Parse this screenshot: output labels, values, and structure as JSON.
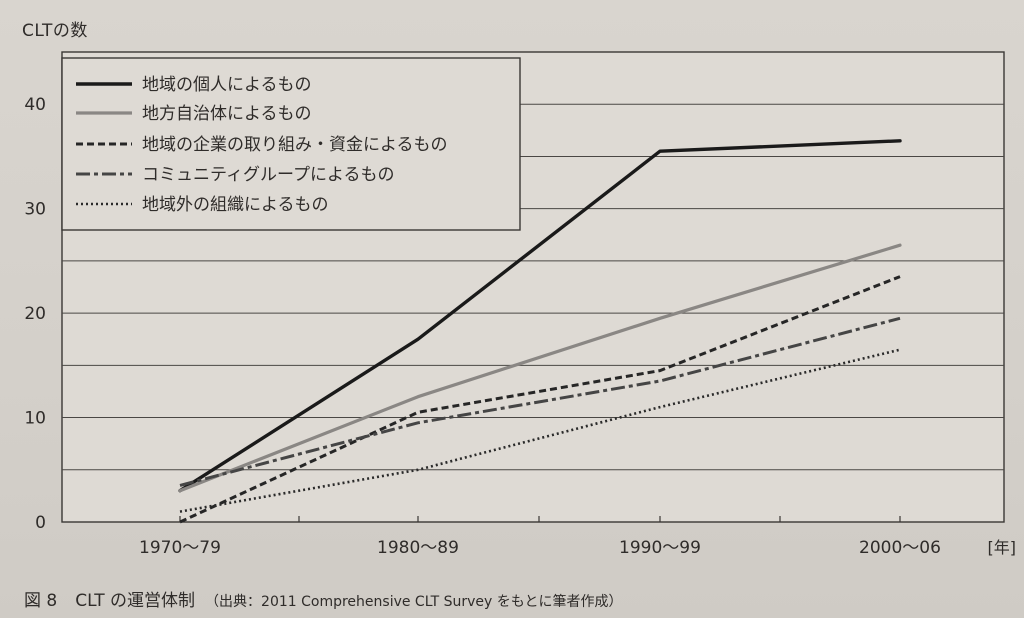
{
  "chart_data": {
    "type": "line",
    "ylabel": "CLTの数",
    "xlabel": "[年]",
    "categories": [
      "1970〜79",
      "1980〜89",
      "1990〜99",
      "2000〜06"
    ],
    "ylim": [
      0,
      45
    ],
    "yticks": [
      0,
      10,
      20,
      30,
      40
    ],
    "grid": "horizontal",
    "legend_placement": "top-left",
    "series": [
      {
        "name": "地域の個人によるもの",
        "style": "solid-thick",
        "color": "#1a1a1a",
        "values": [
          3,
          17.5,
          35.5,
          36.5
        ]
      },
      {
        "name": "地方自治体によるもの",
        "style": "solid-gray",
        "color": "#8a8784",
        "values": [
          3,
          12,
          19.5,
          26.5
        ]
      },
      {
        "name": "地域の企業の取り組み・資金によるもの",
        "style": "dashed",
        "color": "#262626",
        "values": [
          0,
          10.5,
          14.5,
          23.5
        ]
      },
      {
        "name": "コミュニティグループによるもの",
        "style": "dash-dot",
        "color": "#454545",
        "values": [
          3.5,
          9.5,
          13.5,
          19.5
        ]
      },
      {
        "name": "地域外の組織によるもの",
        "style": "dotted",
        "color": "#2a2a2a",
        "values": [
          1,
          5,
          11,
          16.5
        ]
      }
    ]
  },
  "caption": {
    "label": "図 8",
    "title": "CLT の運営体制",
    "source": "（出典：2011 Comprehensive CLT Survey をもとに筆者作成）"
  }
}
